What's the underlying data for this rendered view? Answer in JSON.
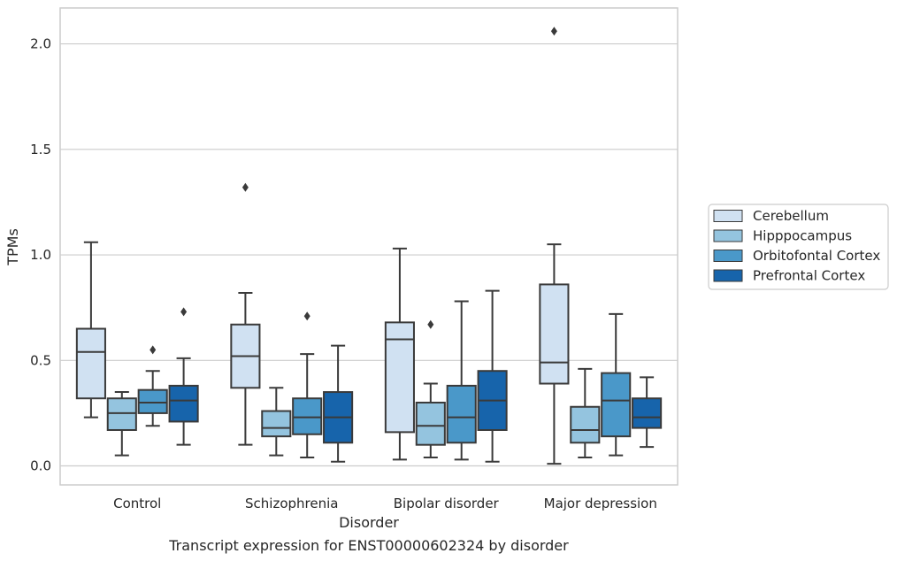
{
  "chart_data": {
    "type": "box",
    "title": "Transcript expression for ENST00000602324 by disorder",
    "xlabel": "Disorder",
    "ylabel": "TPMs",
    "ylim": [
      -0.09,
      2.17
    ],
    "yticks": [
      0.0,
      0.5,
      1.0,
      1.5,
      2.0
    ],
    "y_tick_labels": [
      "0.0",
      "0.5",
      "1.0",
      "1.5",
      "2.0"
    ],
    "grid": true,
    "legend_position": "right",
    "categories": [
      "Control",
      "Schizophrenia",
      "Bipolar disorder",
      "Major depression"
    ],
    "series": [
      {
        "name": "Cerebellum",
        "color": "#d0e1f2",
        "boxes": [
          {
            "whislo": 0.23,
            "q1": 0.32,
            "med": 0.54,
            "q3": 0.65,
            "whishi": 1.06,
            "fliers": []
          },
          {
            "whislo": 0.1,
            "q1": 0.37,
            "med": 0.52,
            "q3": 0.67,
            "whishi": 0.82,
            "fliers": [
              1.32
            ]
          },
          {
            "whislo": 0.03,
            "q1": 0.16,
            "med": 0.6,
            "q3": 0.68,
            "whishi": 1.03,
            "fliers": []
          },
          {
            "whislo": 0.01,
            "q1": 0.39,
            "med": 0.49,
            "q3": 0.86,
            "whishi": 1.05,
            "fliers": [
              2.06
            ]
          }
        ]
      },
      {
        "name": "Hipppocampus",
        "color": "#94c4df",
        "boxes": [
          {
            "whislo": 0.05,
            "q1": 0.17,
            "med": 0.25,
            "q3": 0.32,
            "whishi": 0.35,
            "fliers": []
          },
          {
            "whislo": 0.05,
            "q1": 0.14,
            "med": 0.18,
            "q3": 0.26,
            "whishi": 0.37,
            "fliers": []
          },
          {
            "whislo": 0.04,
            "q1": 0.1,
            "med": 0.19,
            "q3": 0.3,
            "whishi": 0.39,
            "fliers": [
              0.67
            ]
          },
          {
            "whislo": 0.04,
            "q1": 0.11,
            "med": 0.17,
            "q3": 0.28,
            "whishi": 0.46,
            "fliers": []
          }
        ]
      },
      {
        "name": "Orbitofontal Cortex",
        "color": "#4a98c9",
        "boxes": [
          {
            "whislo": 0.19,
            "q1": 0.25,
            "med": 0.3,
            "q3": 0.36,
            "whishi": 0.45,
            "fliers": [
              0.55
            ]
          },
          {
            "whislo": 0.04,
            "q1": 0.15,
            "med": 0.23,
            "q3": 0.32,
            "whishi": 0.53,
            "fliers": [
              0.71
            ]
          },
          {
            "whislo": 0.03,
            "q1": 0.11,
            "med": 0.23,
            "q3": 0.38,
            "whishi": 0.78,
            "fliers": []
          },
          {
            "whislo": 0.05,
            "q1": 0.14,
            "med": 0.31,
            "q3": 0.44,
            "whishi": 0.72,
            "fliers": []
          }
        ]
      },
      {
        "name": "Prefrontal Cortex",
        "color": "#1764ab",
        "boxes": [
          {
            "whislo": 0.1,
            "q1": 0.21,
            "med": 0.31,
            "q3": 0.38,
            "whishi": 0.51,
            "fliers": [
              0.73
            ]
          },
          {
            "whislo": 0.02,
            "q1": 0.11,
            "med": 0.23,
            "q3": 0.35,
            "whishi": 0.57,
            "fliers": []
          },
          {
            "whislo": 0.02,
            "q1": 0.17,
            "med": 0.31,
            "q3": 0.45,
            "whishi": 0.83,
            "fliers": []
          },
          {
            "whislo": 0.09,
            "q1": 0.18,
            "med": 0.23,
            "q3": 0.32,
            "whishi": 0.42,
            "fliers": []
          }
        ]
      }
    ]
  }
}
